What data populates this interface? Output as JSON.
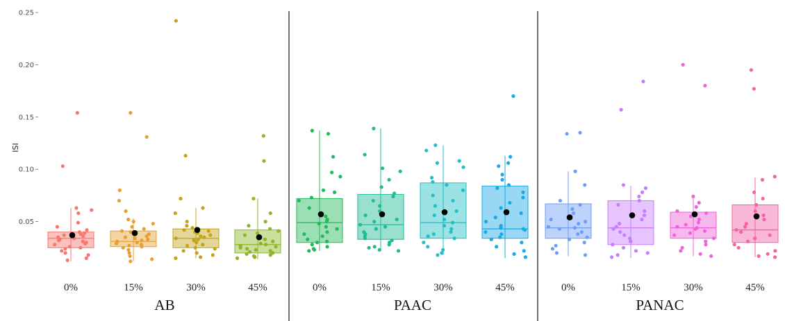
{
  "chart_data": {
    "type": "boxplot",
    "ylabel": "ISI",
    "ylim": [
      0,
      0.25
    ],
    "y_ticks": [
      "0.05",
      "0.10",
      "0.15",
      "0.20",
      "0.25"
    ],
    "grid": false,
    "legend": "none",
    "groups": [
      {
        "label": "AB",
        "categories": [
          {
            "label": "0%",
            "color": "#F8766D",
            "q1": 0.025,
            "median": 0.034,
            "q3": 0.04,
            "whisker_low": 0.012,
            "whisker_high": 0.063,
            "mean": 0.037,
            "points": [
              0.154,
              0.103,
              0.063,
              0.061,
              0.058,
              0.049,
              0.045,
              0.042,
              0.04,
              0.039,
              0.038,
              0.037,
              0.036,
              0.035,
              0.034,
              0.033,
              0.032,
              0.031,
              0.03,
              0.029,
              0.028,
              0.026,
              0.025,
              0.024,
              0.022,
              0.02,
              0.018,
              0.015,
              0.013
            ]
          },
          {
            "label": "15%",
            "color": "#E7A030",
            "q1": 0.026,
            "median": 0.031,
            "q3": 0.041,
            "whisker_low": 0.012,
            "whisker_high": 0.053,
            "mean": 0.039,
            "points": [
              0.154,
              0.131,
              0.08,
              0.07,
              0.06,
              0.052,
              0.05,
              0.048,
              0.045,
              0.043,
              0.041,
              0.04,
              0.038,
              0.036,
              0.035,
              0.034,
              0.033,
              0.032,
              0.031,
              0.03,
              0.029,
              0.028,
              0.027,
              0.026,
              0.025,
              0.023,
              0.02,
              0.017,
              0.014,
              0.012
            ]
          },
          {
            "label": "30%",
            "color": "#C3A31A",
            "q1": 0.025,
            "median": 0.034,
            "q3": 0.043,
            "whisker_low": 0.015,
            "whisker_high": 0.063,
            "mean": 0.042,
            "points": [
              0.242,
              0.113,
              0.072,
              0.063,
              0.058,
              0.05,
              0.046,
              0.044,
              0.042,
              0.041,
              0.04,
              0.039,
              0.037,
              0.036,
              0.035,
              0.034,
              0.033,
              0.032,
              0.03,
              0.028,
              0.027,
              0.025,
              0.024,
              0.022,
              0.02,
              0.018,
              0.016,
              0.015
            ]
          },
          {
            "label": "45%",
            "color": "#8EB529",
            "q1": 0.02,
            "median": 0.028,
            "q3": 0.042,
            "whisker_low": 0.014,
            "whisker_high": 0.072,
            "mean": 0.035,
            "points": [
              0.132,
              0.108,
              0.072,
              0.058,
              0.05,
              0.046,
              0.043,
              0.041,
              0.039,
              0.037,
              0.035,
              0.033,
              0.031,
              0.029,
              0.028,
              0.027,
              0.026,
              0.025,
              0.024,
              0.023,
              0.022,
              0.021,
              0.02,
              0.019,
              0.018,
              0.017,
              0.016,
              0.015
            ]
          }
        ]
      },
      {
        "label": "PAAC",
        "categories": [
          {
            "label": "0%",
            "color": "#24B85C",
            "q1": 0.03,
            "median": 0.049,
            "q3": 0.072,
            "whisker_low": 0.022,
            "whisker_high": 0.137,
            "mean": 0.057,
            "points": [
              0.137,
              0.134,
              0.112,
              0.097,
              0.093,
              0.08,
              0.078,
              0.073,
              0.07,
              0.063,
              0.058,
              0.055,
              0.052,
              0.05,
              0.048,
              0.045,
              0.043,
              0.04,
              0.038,
              0.036,
              0.033,
              0.031,
              0.03,
              0.028,
              0.026,
              0.024,
              0.023,
              0.022
            ]
          },
          {
            "label": "15%",
            "color": "#1EBB95",
            "q1": 0.033,
            "median": 0.047,
            "q3": 0.076,
            "whisker_low": 0.022,
            "whisker_high": 0.139,
            "mean": 0.057,
            "points": [
              0.139,
              0.114,
              0.101,
              0.098,
              0.09,
              0.083,
              0.077,
              0.074,
              0.07,
              0.065,
              0.06,
              0.056,
              0.052,
              0.05,
              0.047,
              0.045,
              0.043,
              0.04,
              0.038,
              0.036,
              0.034,
              0.032,
              0.03,
              0.028,
              0.026,
              0.025,
              0.023,
              0.022
            ]
          },
          {
            "label": "30%",
            "color": "#22BFC4",
            "q1": 0.034,
            "median": 0.049,
            "q3": 0.087,
            "whisker_low": 0.018,
            "whisker_high": 0.123,
            "mean": 0.059,
            "points": [
              0.123,
              0.118,
              0.108,
              0.106,
              0.102,
              0.092,
              0.088,
              0.085,
              0.08,
              0.075,
              0.07,
              0.065,
              0.06,
              0.056,
              0.052,
              0.049,
              0.046,
              0.043,
              0.04,
              0.038,
              0.036,
              0.034,
              0.03,
              0.026,
              0.023,
              0.02,
              0.018
            ]
          },
          {
            "label": "45%",
            "color": "#1AA8E6",
            "q1": 0.034,
            "median": 0.043,
            "q3": 0.084,
            "whisker_low": 0.015,
            "whisker_high": 0.113,
            "mean": 0.059,
            "points": [
              0.17,
              0.112,
              0.106,
              0.103,
              0.095,
              0.09,
              0.085,
              0.082,
              0.078,
              0.073,
              0.068,
              0.063,
              0.058,
              0.054,
              0.05,
              0.046,
              0.044,
              0.043,
              0.042,
              0.04,
              0.038,
              0.035,
              0.033,
              0.03,
              0.026,
              0.022,
              0.019,
              0.016
            ]
          }
        ]
      },
      {
        "label": "PANAC",
        "categories": [
          {
            "label": "0%",
            "color": "#6C9EF8",
            "q1": 0.034,
            "median": 0.044,
            "q3": 0.067,
            "whisker_low": 0.017,
            "whisker_high": 0.098,
            "mean": 0.054,
            "points": [
              0.135,
              0.134,
              0.098,
              0.085,
              0.07,
              0.066,
              0.062,
              0.058,
              0.055,
              0.052,
              0.05,
              0.048,
              0.045,
              0.044,
              0.043,
              0.04,
              0.038,
              0.035,
              0.033,
              0.03,
              0.027,
              0.024,
              0.02,
              0.018
            ]
          },
          {
            "label": "15%",
            "color": "#C77CFF",
            "q1": 0.028,
            "median": 0.044,
            "q3": 0.07,
            "whisker_low": 0.015,
            "whisker_high": 0.084,
            "mean": 0.056,
            "points": [
              0.184,
              0.157,
              0.085,
              0.082,
              0.078,
              0.074,
              0.07,
              0.066,
              0.06,
              0.056,
              0.052,
              0.048,
              0.045,
              0.043,
              0.04,
              0.037,
              0.034,
              0.031,
              0.028,
              0.025,
              0.022,
              0.02,
              0.018,
              0.016
            ]
          },
          {
            "label": "30%",
            "color": "#EE64D8",
            "q1": 0.034,
            "median": 0.044,
            "q3": 0.059,
            "whisker_low": 0.017,
            "whisker_high": 0.074,
            "mean": 0.057,
            "points": [
              0.2,
              0.18,
              0.074,
              0.068,
              0.064,
              0.06,
              0.058,
              0.055,
              0.052,
              0.049,
              0.047,
              0.045,
              0.044,
              0.043,
              0.041,
              0.039,
              0.037,
              0.034,
              0.031,
              0.028,
              0.025,
              0.022,
              0.019,
              0.017
            ]
          },
          {
            "label": "45%",
            "color": "#F562A6",
            "q1": 0.03,
            "median": 0.042,
            "q3": 0.066,
            "whisker_low": 0.016,
            "whisker_high": 0.092,
            "mean": 0.055,
            "points": [
              0.195,
              0.177,
              0.093,
              0.09,
              0.078,
              0.072,
              0.066,
              0.06,
              0.056,
              0.052,
              0.048,
              0.045,
              0.042,
              0.04,
              0.037,
              0.034,
              0.031,
              0.028,
              0.025,
              0.022,
              0.019,
              0.017,
              0.016
            ]
          }
        ]
      }
    ]
  }
}
